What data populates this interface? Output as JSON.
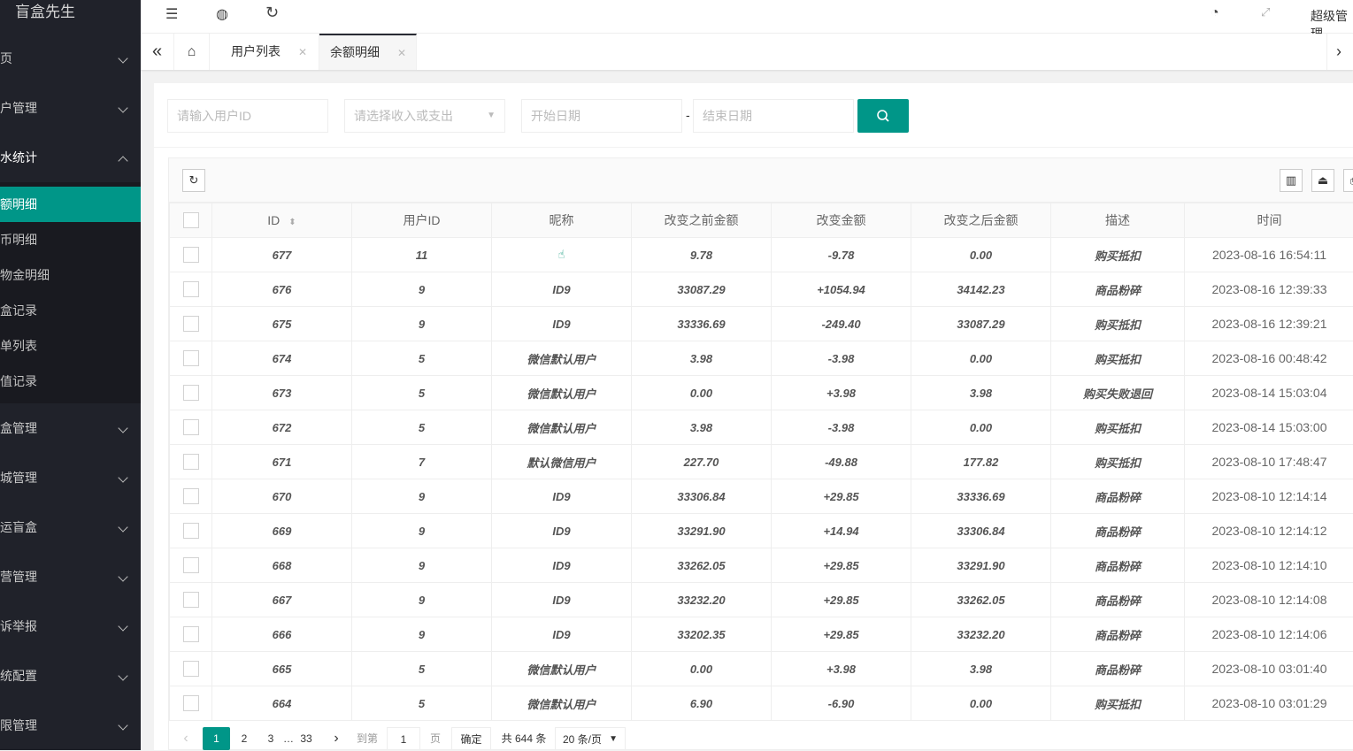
{
  "app": {
    "logo": "盲盒先生"
  },
  "sidebar": {
    "items": [
      {
        "label": "页",
        "open": false
      },
      {
        "label": "户管理",
        "open": false
      },
      {
        "label": "水统计",
        "open": true,
        "children": [
          "额明细",
          "币明细",
          "物金明细",
          "盒记录",
          "单列表",
          "值记录"
        ],
        "active": 0
      },
      {
        "label": "盒管理"
      },
      {
        "label": "城管理"
      },
      {
        "label": "运盲盒"
      },
      {
        "label": "营管理"
      },
      {
        "label": "诉举报"
      },
      {
        "label": "统配置"
      },
      {
        "label": "限管理"
      }
    ]
  },
  "header": {
    "user": "超级管理"
  },
  "tabs": [
    {
      "label": "用户列表"
    },
    {
      "label": "余额明细",
      "active": true
    }
  ],
  "filters": {
    "user_id_placeholder": "请输入用户ID",
    "type_placeholder": "请选择收入或支出",
    "start_placeholder": "开始日期",
    "sep": "-",
    "end_placeholder": "结束日期"
  },
  "table": {
    "columns": [
      "ID",
      "用户ID",
      "昵称",
      "改变之前金额",
      "改变金额",
      "改变之后金额",
      "描述",
      "时间"
    ],
    "rows": [
      [
        "677",
        "11",
        "",
        "9.78",
        "-9.78",
        "0.00",
        "购买抵扣",
        "2023-08-16 16:54:11"
      ],
      [
        "676",
        "9",
        "ID9",
        "33087.29",
        "+1054.94",
        "34142.23",
        "商品粉碎",
        "2023-08-16 12:39:33"
      ],
      [
        "675",
        "9",
        "ID9",
        "33336.69",
        "-249.40",
        "33087.29",
        "购买抵扣",
        "2023-08-16 12:39:21"
      ],
      [
        "674",
        "5",
        "微信默认用户",
        "3.98",
        "-3.98",
        "0.00",
        "购买抵扣",
        "2023-08-16 00:48:42"
      ],
      [
        "673",
        "5",
        "微信默认用户",
        "0.00",
        "+3.98",
        "3.98",
        "购买失败退回",
        "2023-08-14 15:03:04"
      ],
      [
        "672",
        "5",
        "微信默认用户",
        "3.98",
        "-3.98",
        "0.00",
        "购买抵扣",
        "2023-08-14 15:03:00"
      ],
      [
        "671",
        "7",
        "默认微信用户",
        "227.70",
        "-49.88",
        "177.82",
        "购买抵扣",
        "2023-08-10 17:48:47"
      ],
      [
        "670",
        "9",
        "ID9",
        "33306.84",
        "+29.85",
        "33336.69",
        "商品粉碎",
        "2023-08-10 12:14:14"
      ],
      [
        "669",
        "9",
        "ID9",
        "33291.90",
        "+14.94",
        "33306.84",
        "商品粉碎",
        "2023-08-10 12:14:12"
      ],
      [
        "668",
        "9",
        "ID9",
        "33262.05",
        "+29.85",
        "33291.90",
        "商品粉碎",
        "2023-08-10 12:14:10"
      ],
      [
        "667",
        "9",
        "ID9",
        "33232.20",
        "+29.85",
        "33262.05",
        "商品粉碎",
        "2023-08-10 12:14:08"
      ],
      [
        "666",
        "9",
        "ID9",
        "33202.35",
        "+29.85",
        "33232.20",
        "商品粉碎",
        "2023-08-10 12:14:06"
      ],
      [
        "665",
        "5",
        "微信默认用户",
        "0.00",
        "+3.98",
        "3.98",
        "商品粉碎",
        "2023-08-10 03:01:40"
      ],
      [
        "664",
        "5",
        "微信默认用户",
        "6.90",
        "-6.90",
        "0.00",
        "购买抵扣",
        "2023-08-10 03:01:29"
      ]
    ]
  },
  "pagination": {
    "pages": [
      "1",
      "2",
      "3",
      "…",
      "33"
    ],
    "current": "1",
    "goto_label": "到第",
    "goto_value": "1",
    "page_unit": "页",
    "confirm": "确定",
    "total": "共 644 条",
    "page_size": "20 条/页"
  },
  "colors": {
    "accent": "#009688",
    "sidebar": "#20222a"
  }
}
